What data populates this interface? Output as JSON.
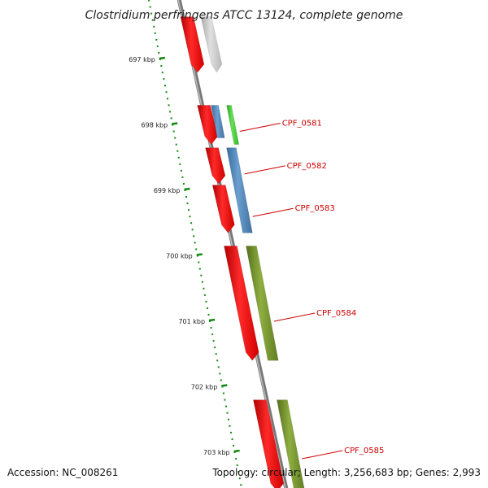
{
  "title": "Clostridium perfringens ATCC 13124, complete genome",
  "footer": {
    "accession": "Accession: NC_008261",
    "topology": "Topology: circular; Length: 3,256,683 bp; Genes: 2,993"
  },
  "colors": {
    "cds_red": "#ff0000",
    "cds_grey": "#c0c0c0",
    "cds_blue": "#4a7fb5",
    "cds_green": "#44cc33",
    "cds_olive": "#6e8c2a",
    "label_red": "#cc0000",
    "tick_green": "#118811",
    "backbone": "#777777"
  },
  "axis": {
    "tick_labels": [
      "697 kbp",
      "698 kbp",
      "699 kbp",
      "700 kbp",
      "701 kbp",
      "702 kbp",
      "703 kbp"
    ],
    "tick_values_kbp": [
      697,
      698,
      699,
      700,
      701,
      702,
      703
    ]
  },
  "features": [
    {
      "name": "",
      "track": "red",
      "start_kbp": 696.35,
      "end_kbp": 697.2,
      "color": "#ff0000"
    },
    {
      "name": "",
      "track": "grey",
      "start_kbp": 696.35,
      "end_kbp": 697.2,
      "color": "#c0c0c0"
    },
    {
      "name": "",
      "track": "red",
      "start_kbp": 697.7,
      "end_kbp": 698.3,
      "color": "#ff0000"
    },
    {
      "name": "",
      "track": "red",
      "start_kbp": 698.35,
      "end_kbp": 698.9,
      "color": "#ff0000"
    },
    {
      "name": "",
      "track": "red",
      "start_kbp": 698.92,
      "end_kbp": 699.65,
      "color": "#ff0000"
    },
    {
      "name": "",
      "track": "red",
      "start_kbp": 699.85,
      "end_kbp": 701.6,
      "color": "#ff0000"
    },
    {
      "name": "",
      "track": "red",
      "start_kbp": 702.2,
      "end_kbp": 703.6,
      "color": "#ff0000"
    },
    {
      "name": "",
      "track": "orf",
      "start_kbp": 697.7,
      "end_kbp": 698.2,
      "color": "#4a7fb5"
    },
    {
      "name": "CPF_0581",
      "track": "gene",
      "start_kbp": 697.7,
      "end_kbp": 698.3,
      "color": "#44cc33",
      "label_kbp": 698.1
    },
    {
      "name": "CPF_0582",
      "track": "gene",
      "start_kbp": 698.35,
      "end_kbp": 699.65,
      "color": "#4a7fb5",
      "label_kbp": 698.75
    },
    {
      "name": "CPF_0583",
      "track": "gene",
      "start_kbp": 698.35,
      "end_kbp": 699.65,
      "color": "#4a7fb5",
      "label_kbp": 699.4
    },
    {
      "name": "CPF_0584",
      "track": "gene",
      "start_kbp": 699.85,
      "end_kbp": 701.6,
      "color": "#6e8c2a",
      "label_kbp": 701.0
    },
    {
      "name": "CPF_0585",
      "track": "gene",
      "start_kbp": 702.2,
      "end_kbp": 703.6,
      "color": "#6e8c2a",
      "label_kbp": 703.1
    }
  ]
}
